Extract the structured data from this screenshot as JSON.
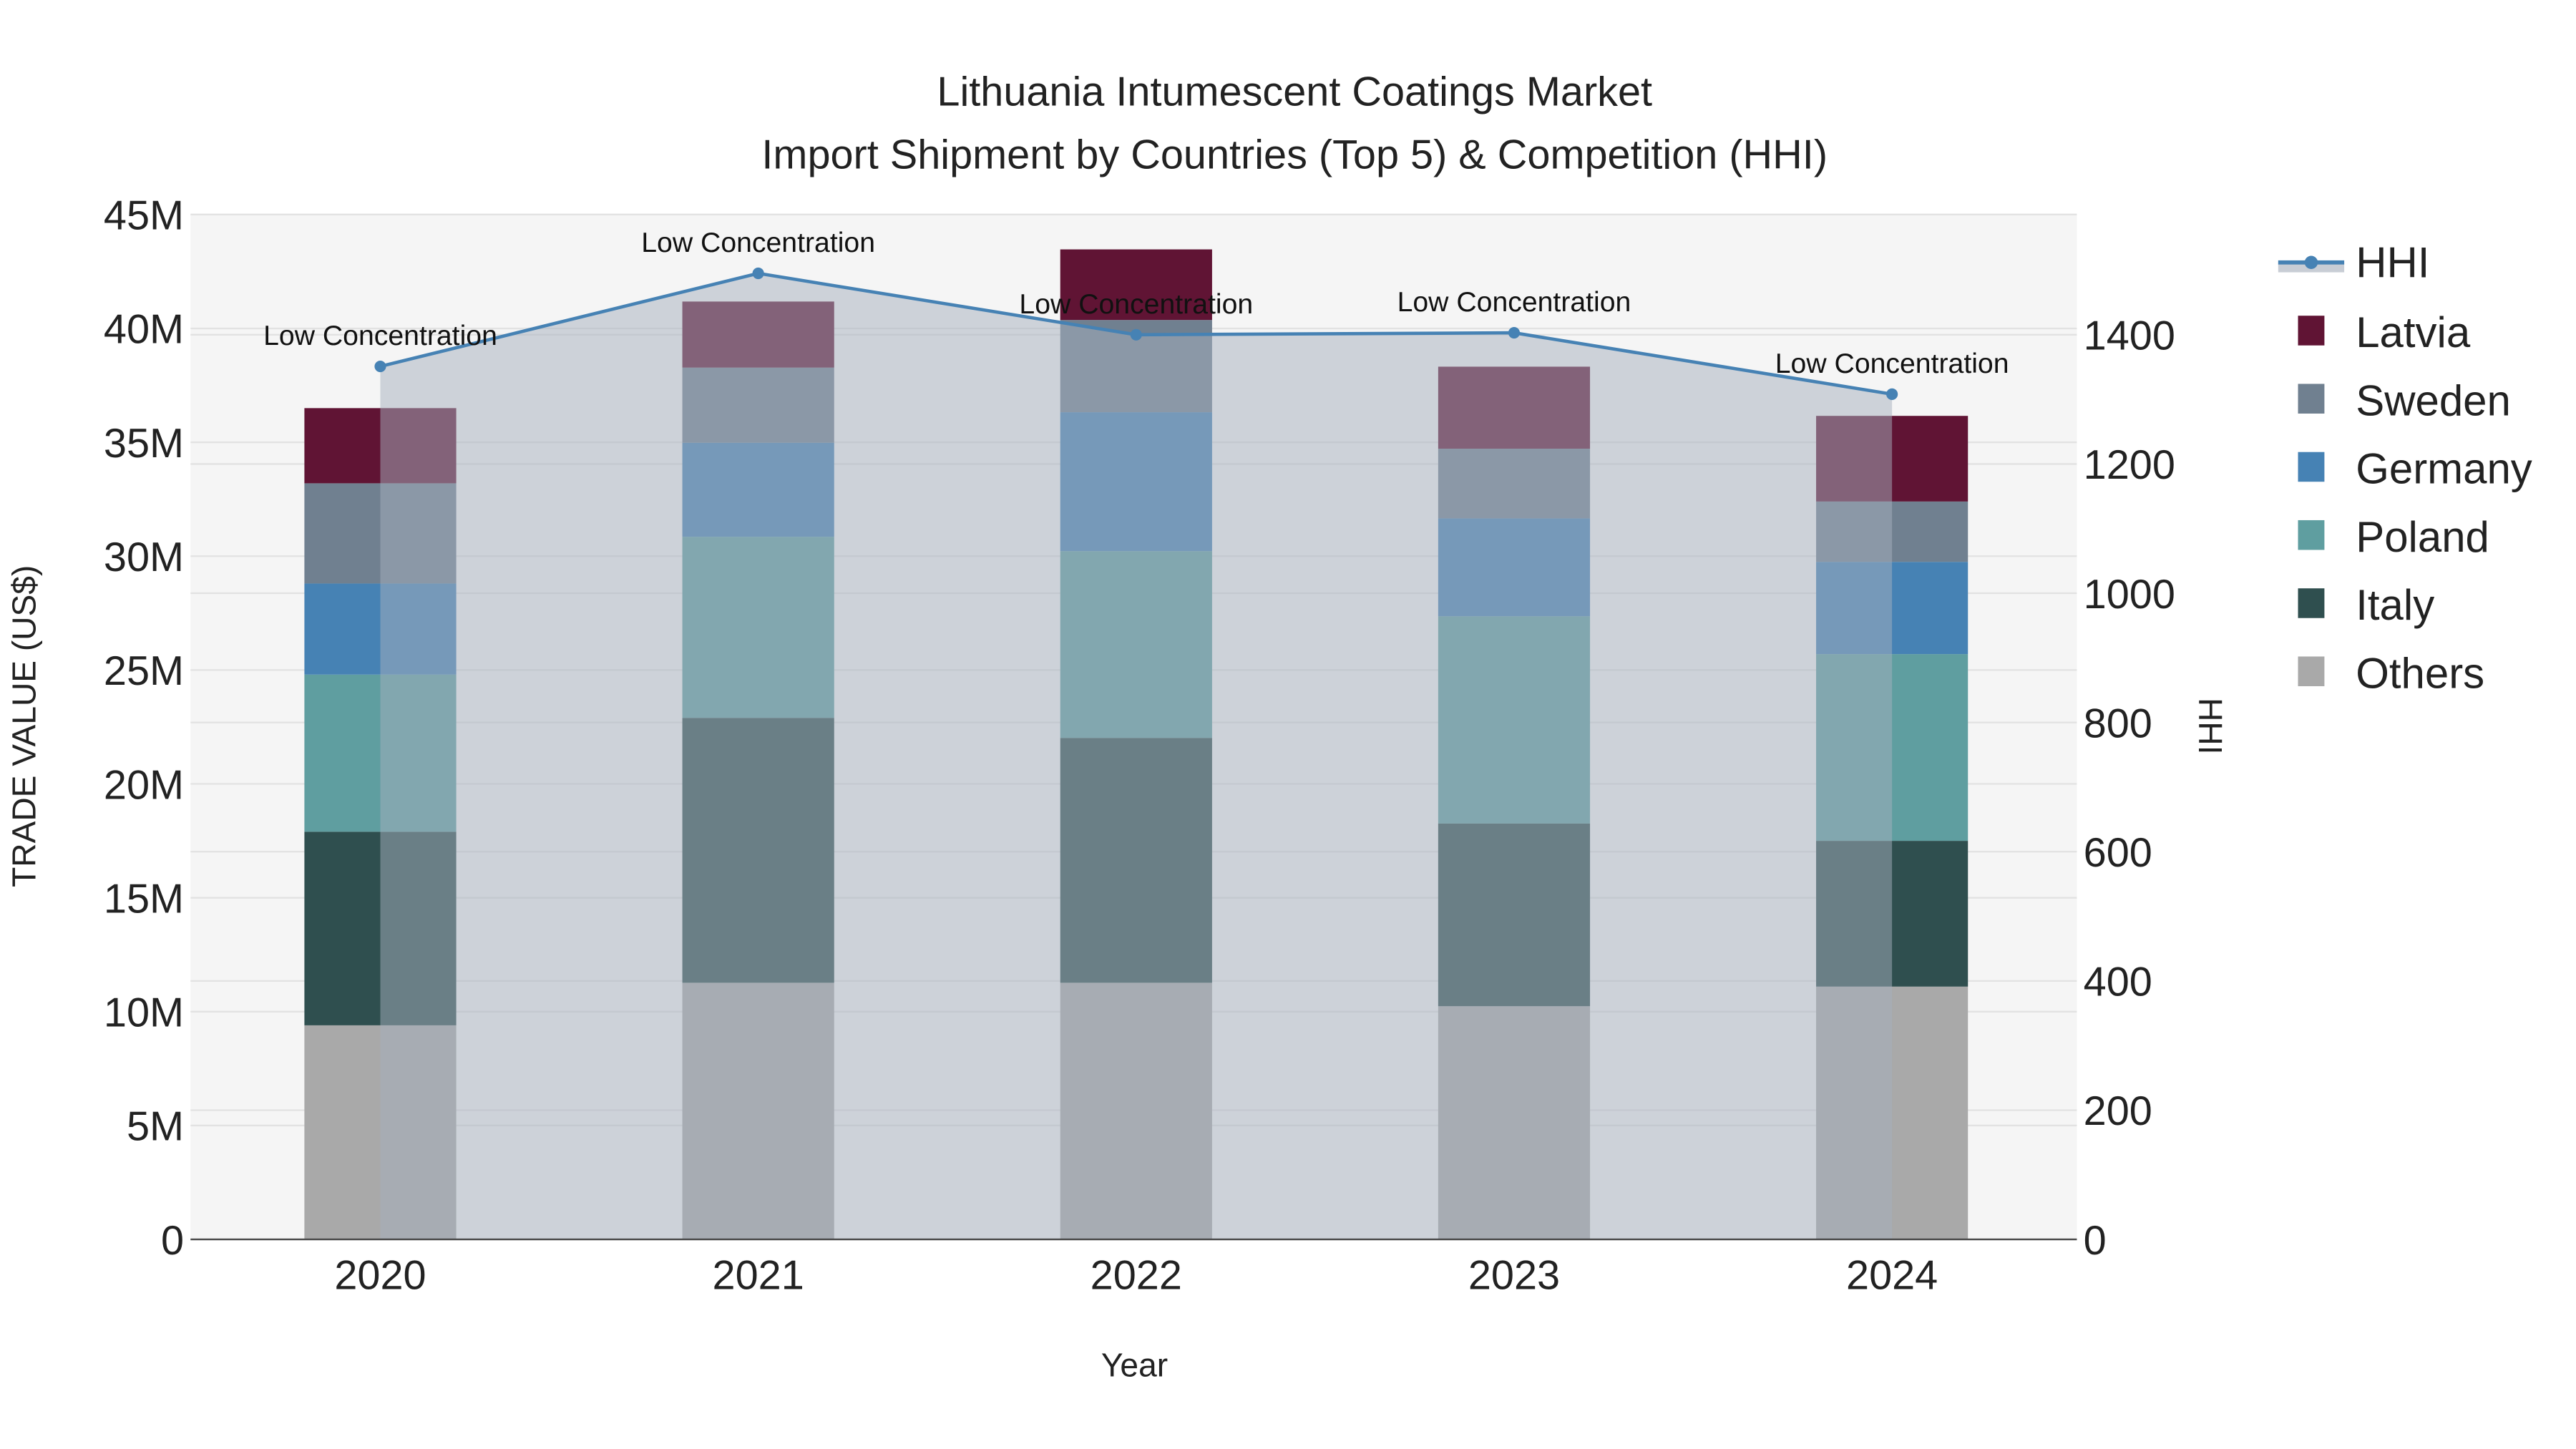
{
  "chart_data": {
    "type": "bar",
    "title": "Lithuania Intumescent Coatings Market",
    "subtitle": "Import Shipment by Countries (Top 5) & Competition (HHI)",
    "xlabel": "Year",
    "ylabel": "TRADE VALUE (US$)",
    "y2label": "HHI",
    "categories": [
      "2020",
      "2021",
      "2022",
      "2023",
      "2024"
    ],
    "ylim": [
      0,
      45000000
    ],
    "y2lim": [
      0,
      1586
    ],
    "yticks": [
      {
        "v": 0,
        "label": "0"
      },
      {
        "v": 5000000,
        "label": "5M"
      },
      {
        "v": 10000000,
        "label": "10M"
      },
      {
        "v": 15000000,
        "label": "15M"
      },
      {
        "v": 20000000,
        "label": "20M"
      },
      {
        "v": 25000000,
        "label": "25M"
      },
      {
        "v": 30000000,
        "label": "30M"
      },
      {
        "v": 35000000,
        "label": "35M"
      },
      {
        "v": 40000000,
        "label": "40M"
      },
      {
        "v": 45000000,
        "label": "45M"
      }
    ],
    "y2ticks": [
      {
        "v": 0,
        "label": "0"
      },
      {
        "v": 200,
        "label": "200"
      },
      {
        "v": 400,
        "label": "400"
      },
      {
        "v": 600,
        "label": "600"
      },
      {
        "v": 800,
        "label": "800"
      },
      {
        "v": 1000,
        "label": "1000"
      },
      {
        "v": 1200,
        "label": "1200"
      },
      {
        "v": 1400,
        "label": "1400"
      }
    ],
    "series": [
      {
        "name": "Others",
        "color": "#A9A9A9",
        "values": [
          9400000,
          11270000,
          11270000,
          10240000,
          11100000
        ]
      },
      {
        "name": "Italy",
        "color": "#2F4F4F",
        "values": [
          8500000,
          11630000,
          10750000,
          8020000,
          6400000
        ]
      },
      {
        "name": "Poland",
        "color": "#5F9EA0",
        "values": [
          6900000,
          7950000,
          8200000,
          9100000,
          8200000
        ]
      },
      {
        "name": "Germany",
        "color": "#4682B4",
        "values": [
          4000000,
          4130000,
          6100000,
          4300000,
          4050000
        ]
      },
      {
        "name": "Sweden",
        "color": "#708090",
        "values": [
          4400000,
          3300000,
          4050000,
          3060000,
          2650000
        ]
      },
      {
        "name": "Latvia",
        "color": "#601434",
        "values": [
          3300000,
          2900000,
          3100000,
          3600000,
          3760000
        ]
      }
    ],
    "hhi": {
      "name": "HHI",
      "color": "#4682B4",
      "values": [
        1351,
        1495,
        1400,
        1403,
        1308
      ],
      "annotations": [
        "Low Concentration",
        "Low Concentration",
        "Low Concentration",
        "Low Concentration",
        "Low Concentration"
      ]
    },
    "legend": [
      "HHI",
      "Latvia",
      "Sweden",
      "Germany",
      "Poland",
      "Italy",
      "Others"
    ],
    "legend_position": "right",
    "grid": true
  }
}
